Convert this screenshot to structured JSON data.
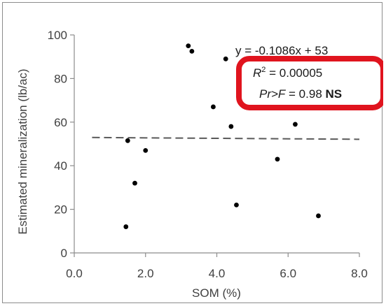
{
  "chart_data": {
    "type": "scatter",
    "xlabel": "SOM (%)",
    "ylabel": "Estimated mineralization (lb/ac)",
    "xlim": [
      0,
      8
    ],
    "ylim": [
      0,
      100
    ],
    "x_ticks": [
      "0.0",
      "2.0",
      "4.0",
      "6.0",
      "8.0"
    ],
    "y_ticks": [
      "0",
      "20",
      "40",
      "60",
      "80",
      "100"
    ],
    "x_tick_values": [
      0,
      2,
      4,
      6,
      8
    ],
    "y_tick_values": [
      0,
      20,
      40,
      60,
      80,
      100
    ],
    "grid": false,
    "points": [
      {
        "x": 1.45,
        "y": 12
      },
      {
        "x": 1.5,
        "y": 51.5
      },
      {
        "x": 1.7,
        "y": 32
      },
      {
        "x": 2.0,
        "y": 47
      },
      {
        "x": 3.2,
        "y": 95
      },
      {
        "x": 3.3,
        "y": 92.5
      },
      {
        "x": 3.9,
        "y": 67
      },
      {
        "x": 4.25,
        "y": 89
      },
      {
        "x": 4.4,
        "y": 58
      },
      {
        "x": 4.55,
        "y": 22
      },
      {
        "x": 5.7,
        "y": 43
      },
      {
        "x": 6.2,
        "y": 59
      },
      {
        "x": 6.85,
        "y": 17
      }
    ],
    "trendline": {
      "slope": -0.1086,
      "intercept": 53,
      "x_range": [
        0.5,
        8
      ],
      "style": "dashed",
      "color": "#595959"
    },
    "annotations": {
      "equation": "y = -0.1086x + 53",
      "r2_label": "R",
      "r2_sup": "2",
      "r2_value": " = 0.00005",
      "pr_label": "Pr>F",
      "pr_value": " = 0.98 ",
      "pr_sig": "NS"
    },
    "highlight_color": "#e0141e",
    "point_color": "#000000"
  }
}
